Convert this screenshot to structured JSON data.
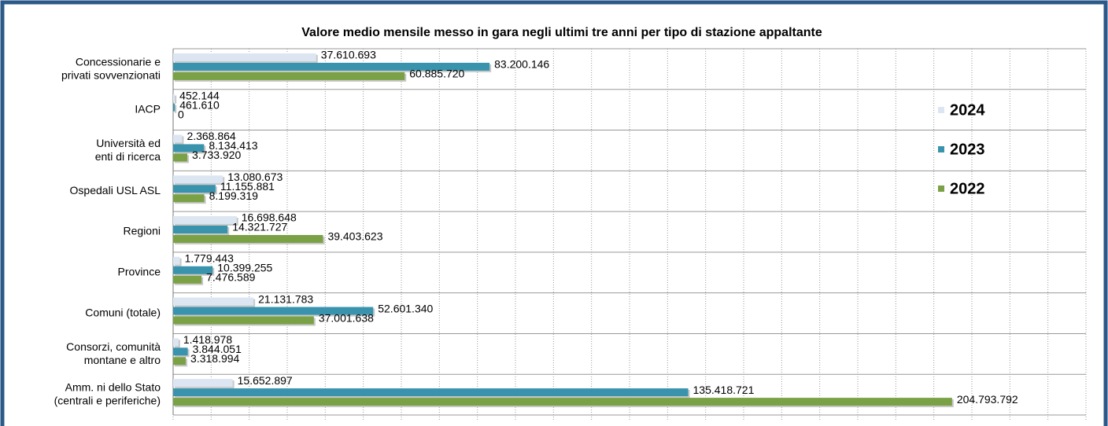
{
  "chart_data": {
    "type": "barh",
    "title": "Valore medio mensile messo in gara negli ultimi tre anni per tipo di stazione appaltante",
    "categories": [
      "Concessionarie e\nprivati sovvenzionati",
      "IACP",
      "Università ed\nenti di ricerca",
      "Ospedali USL ASL",
      "Regioni",
      "Province",
      "Comuni (totale)",
      "Consorzi, comunità\nmontane e altro",
      "Amm. ni dello Stato\n(centrali e periferiche)"
    ],
    "series": [
      {
        "name": "2024",
        "color": "#dce6f2",
        "values": [
          37610693,
          452144,
          2368864,
          13080673,
          16698648,
          1779443,
          21131783,
          1418978,
          15652897
        ],
        "value_labels": [
          "37.610.693",
          "452.144",
          "2.368.864",
          "13.080.673",
          "16.698.648",
          "1.779.443",
          "21.131.783",
          "1.418.978",
          "15.652.897"
        ]
      },
      {
        "name": "2023",
        "color": "#3a93ad",
        "values": [
          83200146,
          461610,
          8134413,
          11155881,
          14321727,
          10399255,
          52601340,
          3844051,
          135418721
        ],
        "value_labels": [
          "83.200.146",
          "461.610",
          "8.134.413",
          "11.155.881",
          "14.321.727",
          "10.399.255",
          "52.601.340",
          "3.844.051",
          "135.418.721"
        ]
      },
      {
        "name": "2022",
        "color": "#7ba146",
        "values": [
          60885720,
          0,
          3733920,
          8199319,
          39403623,
          7476589,
          37001638,
          3318994,
          204793792
        ],
        "value_labels": [
          "60.885.720",
          "0",
          "3.733.920",
          "8.199.319",
          "39.403.623",
          "7.476.589",
          "37.001.638",
          "3.318.994",
          "204.793.792"
        ]
      }
    ],
    "xlim": [
      0,
      240000000
    ],
    "xticks": [
      0,
      10000000,
      20000000,
      30000000,
      40000000,
      50000000,
      60000000,
      70000000,
      80000000,
      90000000,
      100000000,
      110000000,
      120000000,
      130000000,
      140000000,
      150000000,
      160000000,
      170000000,
      180000000,
      190000000,
      200000000,
      210000000,
      220000000,
      230000000,
      240000000
    ],
    "grid": true
  }
}
